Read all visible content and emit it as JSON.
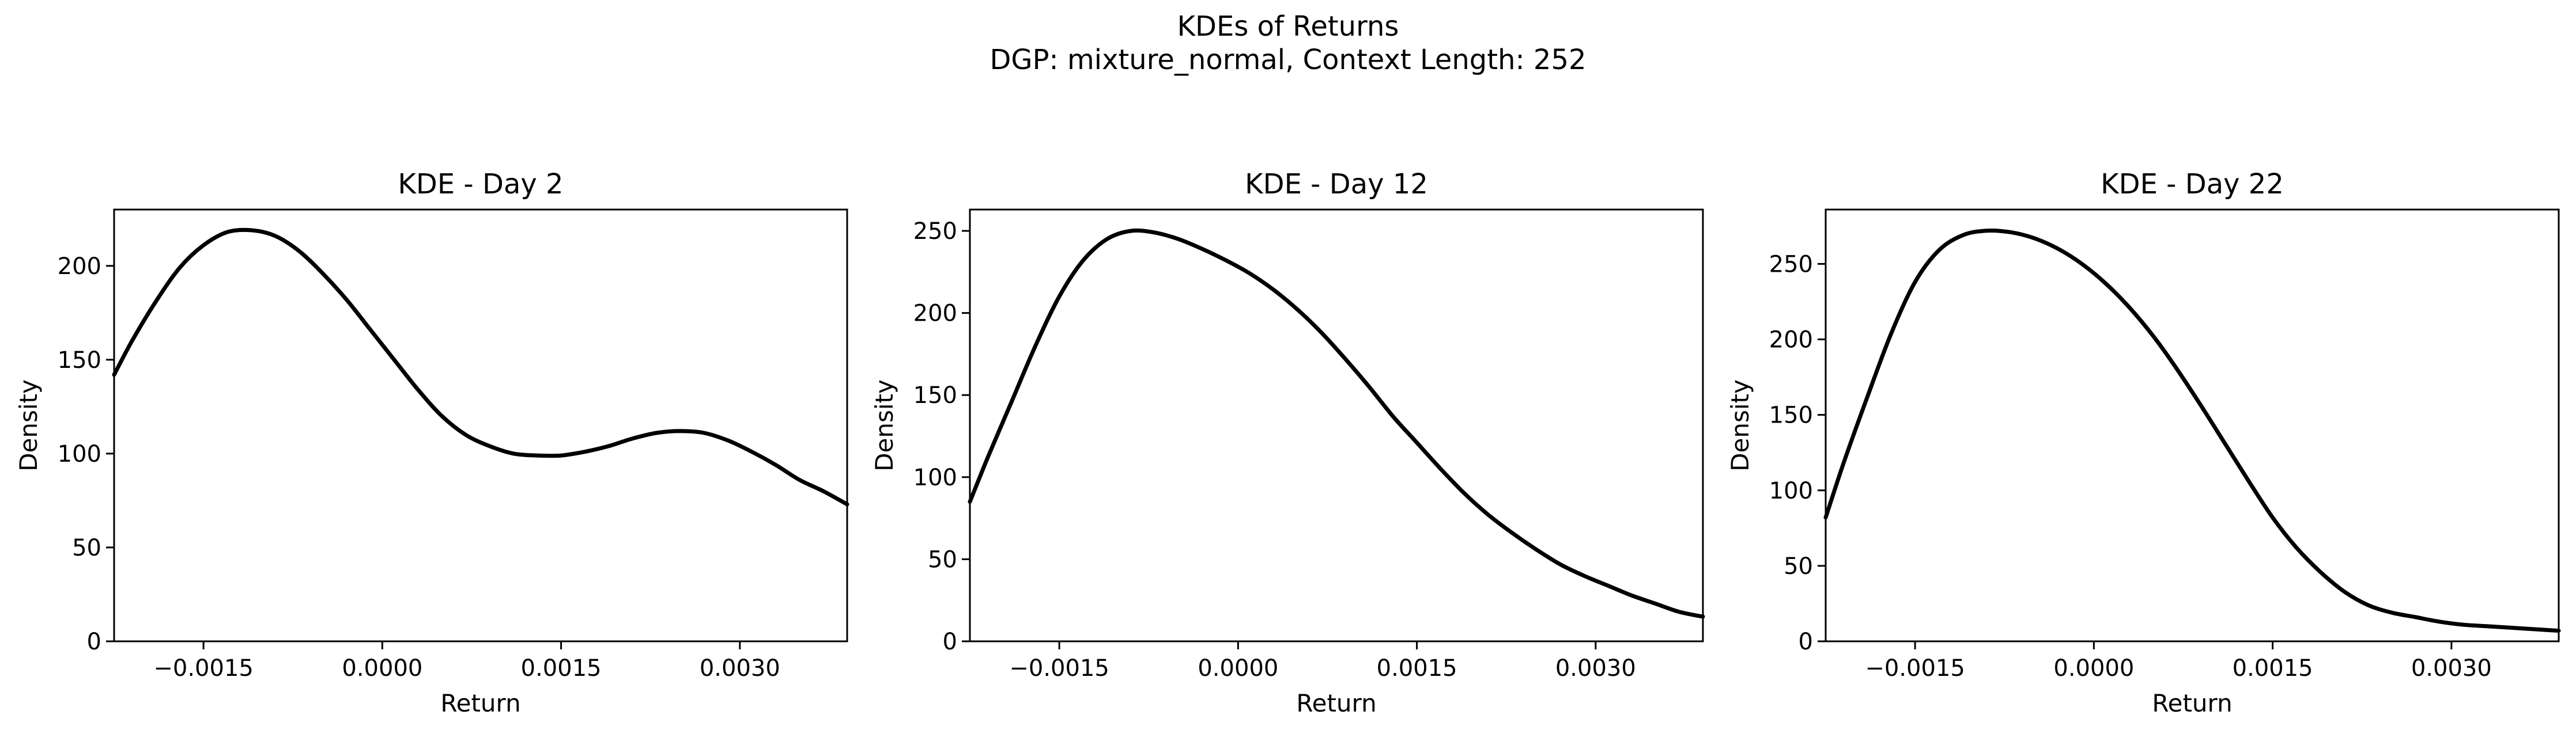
{
  "figure": {
    "title_line1": "KDEs of Returns",
    "title_line2": "DGP: mixture_normal, Context Length: 252"
  },
  "chart_data": [
    {
      "type": "line",
      "title": "KDE - Day 2",
      "xlabel": "Return",
      "ylabel": "Density",
      "xlim": [
        -0.00225,
        0.0039
      ],
      "ylim": [
        0,
        230
      ],
      "xticks": [
        -0.0015,
        0.0,
        0.0015,
        0.003
      ],
      "xtick_labels": [
        "−0.0015",
        "0.0000",
        "0.0015",
        "0.0030"
      ],
      "yticks": [
        0,
        50,
        100,
        150,
        200
      ],
      "ytick_labels": [
        "0",
        "50",
        "100",
        "150",
        "200"
      ],
      "grid": false,
      "series": [
        {
          "color": "#000000",
          "x": [
            -0.00225,
            -0.0021,
            -0.0019,
            -0.0017,
            -0.0015,
            -0.0013,
            -0.0011,
            -0.0009,
            -0.0007,
            -0.0005,
            -0.0003,
            -0.0001,
            0.0001,
            0.0003,
            0.0005,
            0.0007,
            0.0009,
            0.0011,
            0.0013,
            0.0015,
            0.0017,
            0.0019,
            0.0021,
            0.0023,
            0.0025,
            0.0027,
            0.0029,
            0.0031,
            0.0033,
            0.0035,
            0.0037,
            0.0039
          ],
          "y": [
            142,
            160,
            181,
            199,
            211,
            218,
            219,
            216,
            208,
            196,
            182,
            166,
            150,
            134,
            120,
            110,
            104,
            100,
            99,
            99,
            101,
            104,
            108,
            111,
            112,
            111,
            107,
            101,
            94,
            86,
            80,
            73
          ]
        }
      ]
    },
    {
      "type": "line",
      "title": "KDE - Day 12",
      "xlabel": "Return",
      "ylabel": "Density",
      "xlim": [
        -0.00225,
        0.0039
      ],
      "ylim": [
        0,
        263
      ],
      "xticks": [
        -0.0015,
        0.0,
        0.0015,
        0.003
      ],
      "xtick_labels": [
        "−0.0015",
        "0.0000",
        "0.0015",
        "0.0030"
      ],
      "yticks": [
        0,
        50,
        100,
        150,
        200,
        250
      ],
      "ytick_labels": [
        "0",
        "50",
        "100",
        "150",
        "200",
        "250"
      ],
      "grid": false,
      "series": [
        {
          "color": "#000000",
          "x": [
            -0.00225,
            -0.0021,
            -0.0019,
            -0.0017,
            -0.0015,
            -0.0013,
            -0.0011,
            -0.0009,
            -0.0007,
            -0.0005,
            -0.0003,
            -0.0001,
            0.0001,
            0.0003,
            0.0005,
            0.0007,
            0.0009,
            0.0011,
            0.0013,
            0.0015,
            0.0017,
            0.0019,
            0.0021,
            0.0023,
            0.0025,
            0.0027,
            0.0029,
            0.0031,
            0.0033,
            0.0035,
            0.0037,
            0.0039
          ],
          "y": [
            85,
            112,
            146,
            180,
            210,
            232,
            245,
            250,
            249,
            245,
            239,
            232,
            224,
            214,
            202,
            188,
            172,
            155,
            137,
            121,
            105,
            90,
            77,
            66,
            56,
            47,
            40,
            34,
            28,
            23,
            18,
            15
          ]
        }
      ]
    },
    {
      "type": "line",
      "title": "KDE - Day 22",
      "xlabel": "Return",
      "ylabel": "Density",
      "xlim": [
        -0.00225,
        0.0039
      ],
      "ylim": [
        0,
        286
      ],
      "xticks": [
        -0.0015,
        0.0,
        0.0015,
        0.003
      ],
      "xtick_labels": [
        "−0.0015",
        "0.0000",
        "0.0015",
        "0.0030"
      ],
      "yticks": [
        0,
        50,
        100,
        150,
        200,
        250
      ],
      "ytick_labels": [
        "0",
        "50",
        "100",
        "150",
        "200",
        "250"
      ],
      "grid": false,
      "series": [
        {
          "color": "#000000",
          "x": [
            -0.00225,
            -0.0021,
            -0.0019,
            -0.0017,
            -0.0015,
            -0.0013,
            -0.0011,
            -0.0009,
            -0.0007,
            -0.0005,
            -0.0003,
            -0.0001,
            0.0001,
            0.0003,
            0.0005,
            0.0007,
            0.0009,
            0.0011,
            0.0013,
            0.0015,
            0.0017,
            0.0019,
            0.0021,
            0.0023,
            0.0025,
            0.0027,
            0.0029,
            0.0031,
            0.0033,
            0.0035,
            0.0037,
            0.0039
          ],
          "y": [
            82,
            118,
            162,
            204,
            238,
            259,
            269,
            272,
            271,
            267,
            260,
            250,
            237,
            221,
            202,
            180,
            156,
            131,
            106,
            82,
            62,
            46,
            33,
            24,
            19,
            16,
            13,
            11,
            10,
            9,
            8,
            7
          ]
        }
      ]
    }
  ]
}
